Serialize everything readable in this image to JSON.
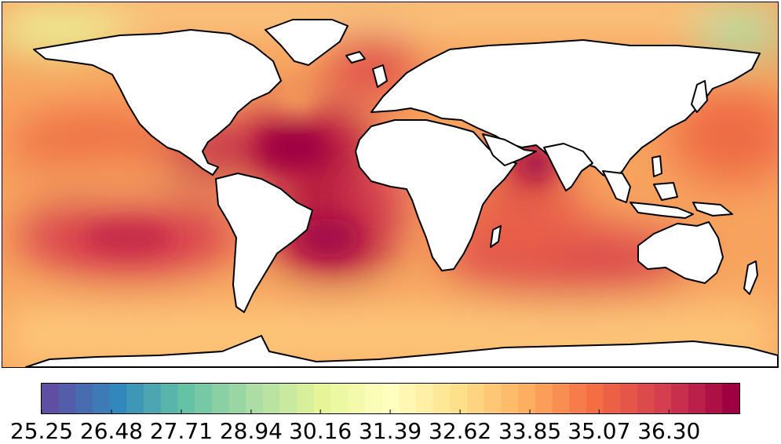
{
  "map": {
    "colormap": [
      "#5e4fa2",
      "#3288bd",
      "#66c2a5",
      "#abdda4",
      "#e6f598",
      "#ffffbf",
      "#fee08b",
      "#fdae61",
      "#f46d43",
      "#d53e4f",
      "#9e0142"
    ],
    "land_color": "#ffffff",
    "coastline_color": "#000000",
    "base_ocean_color": "#f7a35e"
  },
  "colorbar": {
    "min": 25.25,
    "max": 37.54,
    "levels": 41,
    "ticks": [
      "25.25",
      "26.48",
      "27.71",
      "28.94",
      "30.16",
      "31.39",
      "32.62",
      "33.85",
      "35.07",
      "36.30"
    ]
  }
}
